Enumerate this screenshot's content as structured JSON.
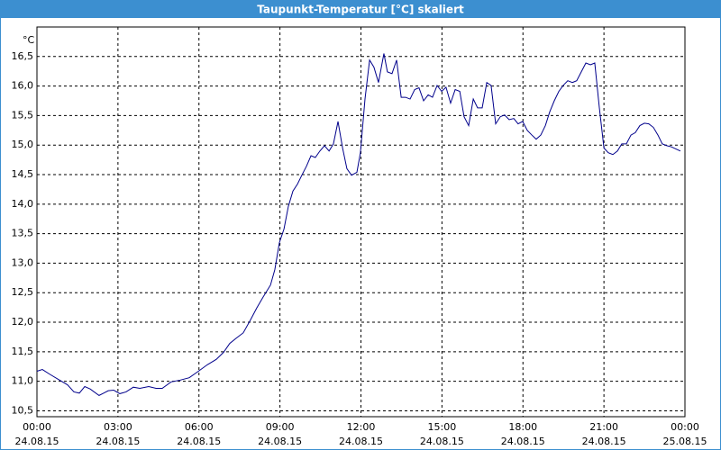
{
  "chart_data": {
    "type": "line",
    "title": "Taupunkt-Temperatur [°C] skaliert",
    "y_label": "°C",
    "color": "#00008b",
    "grid": true,
    "xlim": [
      0,
      24
    ],
    "ylim": [
      10.4,
      17.0
    ],
    "xticks": [
      {
        "value": 0,
        "label": [
          "00:00",
          "24.08.15"
        ]
      },
      {
        "value": 3,
        "label": [
          "03:00",
          "24.08.15"
        ]
      },
      {
        "value": 6,
        "label": [
          "06:00",
          "24.08.15"
        ]
      },
      {
        "value": 9,
        "label": [
          "09:00",
          "24.08.15"
        ]
      },
      {
        "value": 12,
        "label": [
          "12:00",
          "24.08.15"
        ]
      },
      {
        "value": 15,
        "label": [
          "15:00",
          "24.08.15"
        ]
      },
      {
        "value": 18,
        "label": [
          "18:00",
          "24.08.15"
        ]
      },
      {
        "value": 21,
        "label": [
          "21:00",
          "24.08.15"
        ]
      },
      {
        "value": 24,
        "label": [
          "00:00",
          "25.08.15"
        ]
      }
    ],
    "yticks": [
      {
        "value": 10.5,
        "label": "10,5"
      },
      {
        "value": 11,
        "label": "11,0"
      },
      {
        "value": 11.5,
        "label": "11,5"
      },
      {
        "value": 12,
        "label": "12,0"
      },
      {
        "value": 12.5,
        "label": "12,5"
      },
      {
        "value": 13,
        "label": "13,0"
      },
      {
        "value": 13.5,
        "label": "13,5"
      },
      {
        "value": 14,
        "label": "14,0"
      },
      {
        "value": 14.5,
        "label": "14,5"
      },
      {
        "value": 15,
        "label": "15,0"
      },
      {
        "value": 15.5,
        "label": "15,5"
      },
      {
        "value": 16,
        "label": "16,0"
      },
      {
        "value": 16.5,
        "label": "16,5"
      }
    ],
    "x": [
      0.0,
      0.2,
      0.47,
      0.8,
      1.13,
      1.37,
      1.57,
      1.77,
      1.97,
      2.3,
      2.47,
      2.64,
      2.84,
      3.07,
      3.3,
      3.57,
      3.81,
      4.14,
      4.41,
      4.64,
      4.97,
      5.31,
      5.64,
      5.98,
      6.31,
      6.64,
      6.91,
      7.14,
      7.38,
      7.64,
      7.91,
      8.14,
      8.38,
      8.65,
      8.81,
      8.98,
      9.15,
      9.31,
      9.48,
      9.65,
      9.81,
      9.98,
      10.15,
      10.31,
      10.48,
      10.65,
      10.82,
      10.98,
      11.15,
      11.32,
      11.48,
      11.65,
      11.85,
      11.98,
      12.15,
      12.32,
      12.48,
      12.65,
      12.85,
      12.98,
      13.15,
      13.32,
      13.49,
      13.65,
      13.82,
      13.99,
      14.15,
      14.32,
      14.49,
      14.65,
      14.82,
      14.99,
      15.15,
      15.32,
      15.49,
      15.66,
      15.82,
      15.99,
      16.16,
      16.32,
      16.49,
      16.66,
      16.82,
      16.99,
      17.16,
      17.32,
      17.49,
      17.66,
      17.82,
      17.99,
      18.16,
      18.33,
      18.49,
      18.66,
      18.83,
      18.99,
      19.16,
      19.33,
      19.49,
      19.66,
      19.83,
      19.99,
      20.16,
      20.33,
      20.5,
      20.66,
      20.83,
      21.0,
      21.16,
      21.33,
      21.5,
      21.66,
      21.83,
      22.0,
      22.16,
      22.33,
      22.5,
      22.66,
      22.83,
      23.0,
      23.16,
      23.33,
      23.5,
      23.83
    ],
    "values": [
      11.17,
      11.2,
      11.12,
      11.03,
      10.94,
      10.82,
      10.8,
      10.91,
      10.87,
      10.76,
      10.8,
      10.84,
      10.85,
      10.79,
      10.82,
      10.9,
      10.88,
      10.91,
      10.88,
      10.88,
      10.99,
      11.02,
      11.06,
      11.17,
      11.28,
      11.37,
      11.49,
      11.64,
      11.73,
      11.82,
      12.04,
      12.24,
      12.43,
      12.63,
      12.89,
      13.35,
      13.58,
      13.96,
      14.22,
      14.34,
      14.49,
      14.64,
      14.82,
      14.79,
      14.9,
      14.99,
      14.9,
      15.02,
      15.4,
      14.95,
      14.6,
      14.49,
      14.54,
      14.87,
      15.78,
      16.44,
      16.32,
      16.06,
      16.55,
      16.24,
      16.21,
      16.44,
      15.81,
      15.81,
      15.78,
      15.94,
      15.97,
      15.75,
      15.85,
      15.81,
      16.01,
      15.91,
      15.98,
      15.71,
      15.94,
      15.91,
      15.48,
      15.33,
      15.78,
      15.63,
      15.63,
      16.06,
      16.01,
      15.36,
      15.48,
      15.51,
      15.43,
      15.45,
      15.36,
      15.4,
      15.25,
      15.17,
      15.1,
      15.17,
      15.33,
      15.56,
      15.75,
      15.91,
      16.01,
      16.09,
      16.06,
      16.09,
      16.24,
      16.39,
      16.36,
      16.39,
      15.63,
      14.95,
      14.87,
      14.84,
      14.9,
      15.02,
      15.02,
      15.17,
      15.21,
      15.33,
      15.37,
      15.36,
      15.3,
      15.17,
      15.02,
      14.99,
      14.97,
      14.9
    ]
  }
}
